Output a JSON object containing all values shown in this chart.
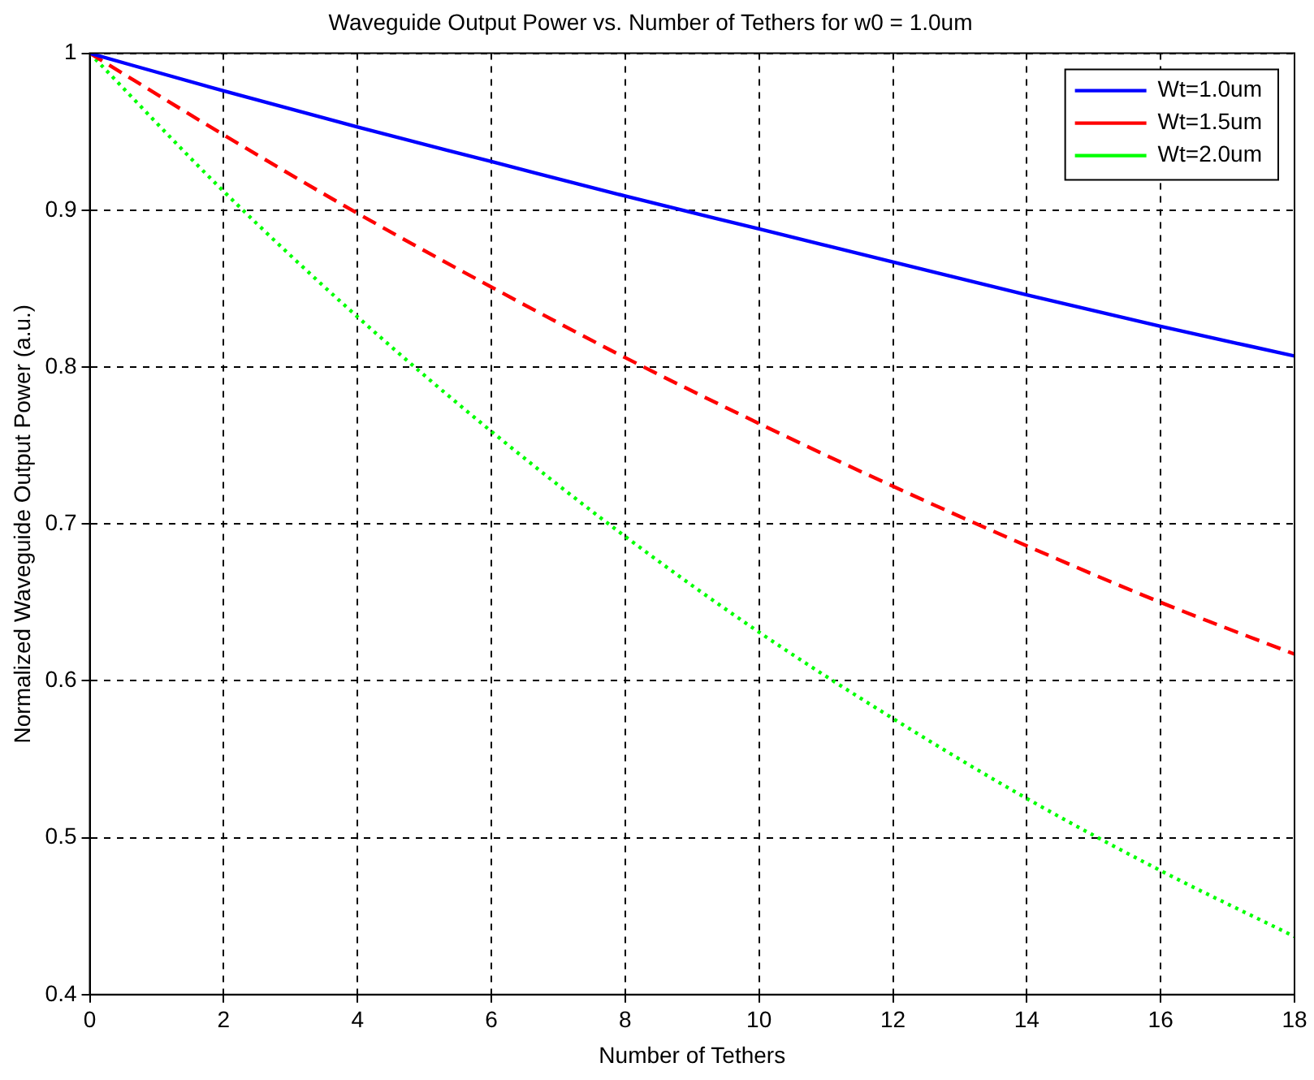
{
  "chart_data": {
    "type": "line",
    "title": "Waveguide Output Power vs. Number of Tethers for w0 = 1.0um",
    "xlabel": "Number of Tethers",
    "ylabel": "Normalized Waveguide Output Power (a.u.)",
    "x": [
      0,
      2,
      4,
      6,
      8,
      10,
      12,
      14,
      16,
      18
    ],
    "series": [
      {
        "name": "Wt=1.0um",
        "color": "#0000ff",
        "line_style": "solid",
        "values": [
          1,
          0.976,
          0.953,
          0.931,
          0.909,
          0.888,
          0.867,
          0.846,
          0.826,
          0.807
        ]
      },
      {
        "name": "Wt=1.5um",
        "color": "#ff0000",
        "line_style": "dashed",
        "values": [
          1,
          0.948,
          0.898,
          0.851,
          0.806,
          0.764,
          0.724,
          0.686,
          0.65,
          0.617
        ]
      },
      {
        "name": "Wt=2.0um",
        "color": "#00ff00",
        "line_style": "dotted",
        "values": [
          1,
          0.912,
          0.832,
          0.759,
          0.692,
          0.631,
          0.576,
          0.525,
          0.479,
          0.437
        ]
      }
    ],
    "xlim": [
      0,
      18
    ],
    "xticks": [
      0,
      2,
      4,
      6,
      8,
      10,
      12,
      14,
      16,
      18
    ],
    "ylim": [
      0.4,
      1
    ],
    "yticks": [
      0.4,
      0.5,
      0.6,
      0.7,
      0.8,
      0.9,
      1
    ],
    "grid": true,
    "legend": "top right",
    "marker": "none"
  }
}
